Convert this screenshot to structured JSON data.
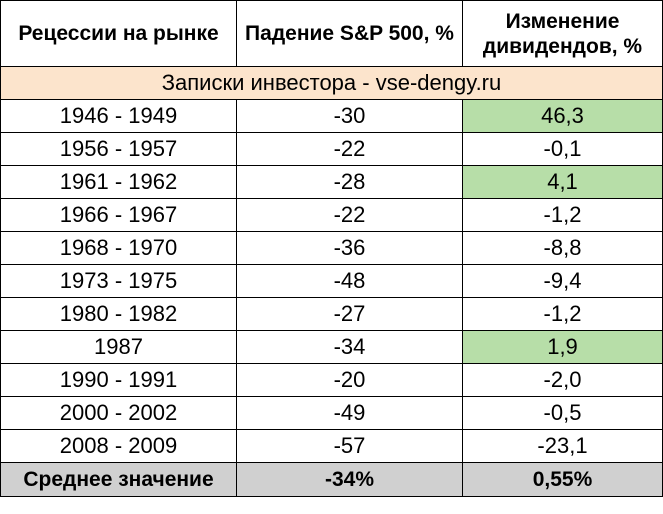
{
  "table": {
    "headers": [
      "Рецессии на рынке",
      "Падение S&P 500, %",
      "Изменение дивидендов, %"
    ],
    "source_note": "Записки инвестора - vse-dengy.ru",
    "highlight_color": "#b7dea8",
    "rows": [
      {
        "period": "1946 - 1949",
        "sp500_drop": "-30",
        "dividend_change": "46,3"
      },
      {
        "period": "1956 - 1957",
        "sp500_drop": "-22",
        "dividend_change": "-0,1"
      },
      {
        "period": "1961 - 1962",
        "sp500_drop": "-28",
        "dividend_change": "4,1"
      },
      {
        "period": "1966 - 1967",
        "sp500_drop": "-22",
        "dividend_change": "-1,2"
      },
      {
        "period": "1968 - 1970",
        "sp500_drop": "-36",
        "dividend_change": "-8,8"
      },
      {
        "period": "1973 - 1975",
        "sp500_drop": "-48",
        "dividend_change": "-9,4"
      },
      {
        "period": "1980 - 1982",
        "sp500_drop": "-27",
        "dividend_change": "-1,2"
      },
      {
        "period": "1987",
        "sp500_drop": "-34",
        "dividend_change": "1,9"
      },
      {
        "period": "1990 - 1991",
        "sp500_drop": "-20",
        "dividend_change": "-2,0"
      },
      {
        "period": "2000 - 2002",
        "sp500_drop": "-49",
        "dividend_change": "-0,5"
      },
      {
        "period": "2008 - 2009",
        "sp500_drop": "-57",
        "dividend_change": "-23,1"
      }
    ],
    "average": {
      "label": "Среднее значение",
      "sp500_drop": "-34%",
      "dividend_change": "0,55%"
    }
  }
}
